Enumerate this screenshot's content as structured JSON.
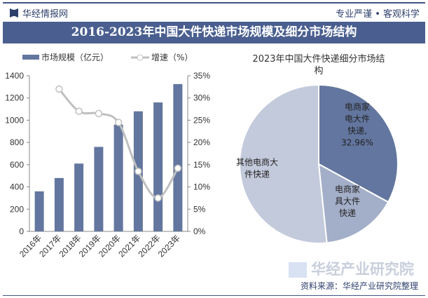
{
  "header": {
    "brand": "华经情报网",
    "motto": "专业严谨 • 客观科学",
    "title": "2016-2023年中国大件快递市场规模及细分市场结构"
  },
  "footer": {
    "source": "资料来源：华经产业研究院整理",
    "watermark": "华经产业研究院",
    "watermark_url": "www.huaon.com"
  },
  "colors": {
    "bar": "#63769f",
    "line": "#bfbfbf",
    "pie": [
      "#63769f",
      "#a3aec8",
      "#c3cadb"
    ],
    "title_bg": "#4a5f8f"
  },
  "chart_data": [
    {
      "type": "bar+line",
      "categories": [
        "2016年",
        "2017年",
        "2018年",
        "2019年",
        "2020年",
        "2021年",
        "2022年",
        "2023年"
      ],
      "series": [
        {
          "name": "市场规模（亿元）",
          "type": "bar",
          "axis": "left",
          "values": [
            360,
            480,
            610,
            760,
            960,
            1080,
            1160,
            1325
          ]
        },
        {
          "name": "增速（%）",
          "type": "line",
          "axis": "right",
          "values": [
            null,
            32.0,
            27.0,
            26.5,
            24.5,
            13.5,
            7.5,
            14.2
          ]
        }
      ],
      "ylim_left": [
        0,
        1400
      ],
      "yticks_left": [
        "0",
        "200",
        "400",
        "600",
        "800",
        "1000",
        "1200",
        "1400"
      ],
      "ylim_right": [
        0,
        35
      ],
      "yticks_right": [
        "0%",
        "5%",
        "10%",
        "15%",
        "20%",
        "25%",
        "30%",
        "35%"
      ],
      "legend": "top",
      "grid": false
    },
    {
      "type": "pie",
      "title": "2023年中国大件快递细分市场结构",
      "slices": [
        {
          "label": "电商家电大件快递",
          "value": 32.96,
          "display": "电商家\n电大件\n快递,\n32.96%"
        },
        {
          "label": "电商家具大件快递",
          "value": 15.4,
          "display": "电商家\n具大件\n快递"
        },
        {
          "label": "其他电商大件快递",
          "value": 51.64,
          "display": "其他电商大\n件快递"
        }
      ]
    }
  ]
}
